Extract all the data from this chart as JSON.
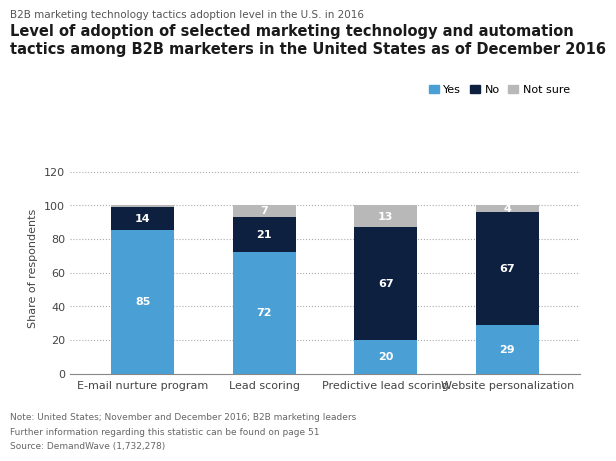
{
  "supertitle": "B2B marketing technology tactics adoption level in the U.S. in 2016",
  "title": "Level of adoption of selected marketing technology and automation\ntactics among B2B marketers in the United States as of December 2016",
  "categories": [
    "E-mail nurture program",
    "Lead scoring",
    "Predictive lead scoring",
    "Website personalization"
  ],
  "yes_values": [
    85,
    72,
    20,
    29
  ],
  "no_values": [
    14,
    21,
    67,
    67
  ],
  "not_sure_values": [
    1,
    7,
    13,
    4
  ],
  "yes_color": "#4a9fd4",
  "no_color": "#0e2040",
  "not_sure_color": "#b8b8b8",
  "ylabel": "Share of respondents",
  "ylim": [
    0,
    125
  ],
  "yticks": [
    0,
    20,
    40,
    60,
    80,
    100,
    120
  ],
  "legend_labels": [
    "Yes",
    "No",
    "Not sure"
  ],
  "note_line1": "Note: United States; November and December 2016; B2B marketing leaders",
  "note_line2": "Further information regarding this statistic can be found on page 51",
  "note_line3": "Source: DemandWave (1,732,278)",
  "background_color": "#ffffff",
  "bar_width": 0.52
}
